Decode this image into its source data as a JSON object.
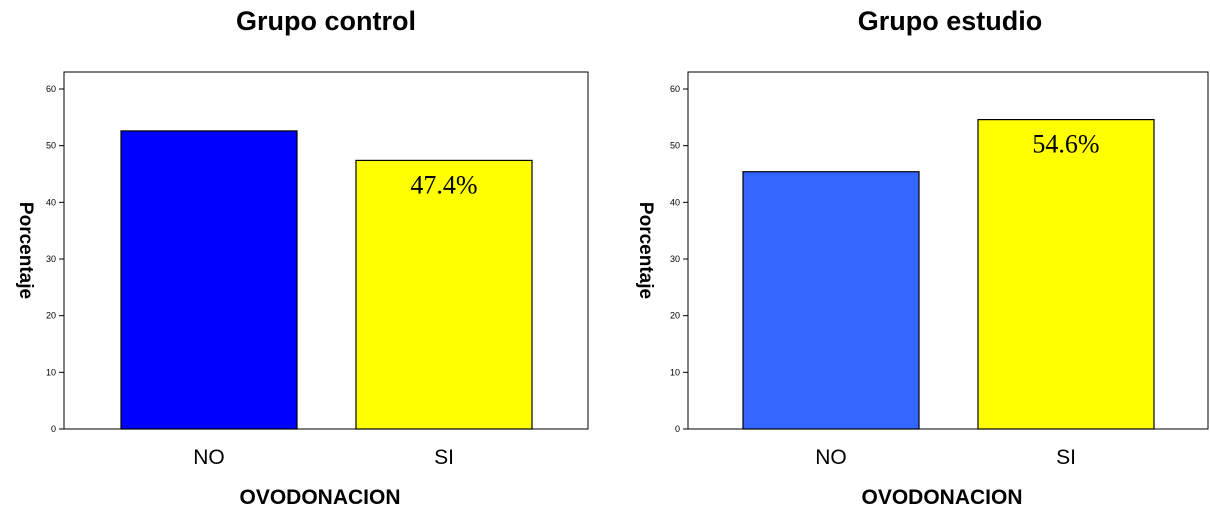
{
  "chart_data": [
    {
      "type": "bar",
      "title": "Grupo control",
      "xlabel": "OVODONACION",
      "ylabel": "Porcentaje",
      "categories": [
        "NO",
        "SI"
      ],
      "values": [
        52.6,
        47.4
      ],
      "colors": [
        "#0000ff",
        "#ffff00"
      ],
      "data_labels": [
        "",
        "47.4%"
      ],
      "ylim": [
        0,
        63
      ],
      "yticks": [
        0,
        10,
        20,
        30,
        40,
        50,
        60
      ]
    },
    {
      "type": "bar",
      "title": "Grupo estudio",
      "xlabel": "OVODONACION",
      "ylabel": "Porcentaje",
      "categories": [
        "NO",
        "SI"
      ],
      "values": [
        45.4,
        54.6
      ],
      "colors": [
        "#3366ff",
        "#ffff00"
      ],
      "data_labels": [
        "",
        "54.6%"
      ],
      "ylim": [
        0,
        63
      ],
      "yticks": [
        0,
        10,
        20,
        30,
        40,
        50,
        60
      ]
    }
  ]
}
